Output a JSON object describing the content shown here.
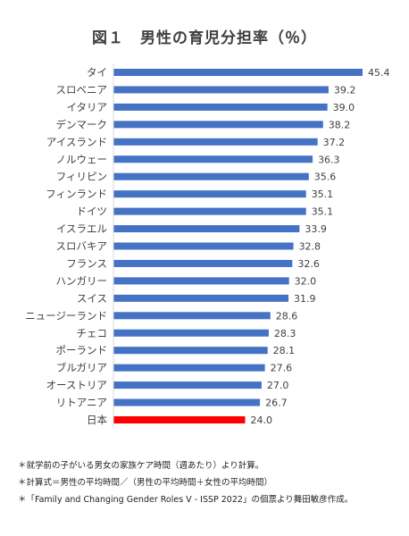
{
  "chart_data": {
    "type": "bar",
    "orientation": "horizontal",
    "title": "図１　男性の育児分担率（％）",
    "categories": [
      "タイ",
      "スロベニア",
      "イタリア",
      "デンマーク",
      "アイスランド",
      "ノルウェー",
      "フィリピン",
      "フィンランド",
      "ドイツ",
      "イスラエル",
      "スロバキア",
      "フランス",
      "ハンガリー",
      "スイス",
      "ニュージーランド",
      "チェコ",
      "ポーランド",
      "ブルガリア",
      "オーストリア",
      "リトアニア",
      "日本"
    ],
    "value_labels": [
      "45.4",
      "39.2",
      "39.0",
      "38.2",
      "37.2",
      "36.3",
      "35.6",
      "35.1",
      "35.1",
      "33.9",
      "32.8",
      "32.6",
      "32.0",
      "31.9",
      "28.6",
      "28.3",
      "28.1",
      "27.6",
      "27.0",
      "26.7",
      "24.0"
    ],
    "values": [
      45.4,
      39.2,
      39.0,
      38.2,
      37.2,
      36.3,
      35.6,
      35.1,
      35.1,
      33.9,
      32.8,
      32.6,
      32.0,
      31.9,
      28.6,
      28.3,
      28.1,
      27.6,
      27.0,
      26.7,
      24.0
    ],
    "colors": {
      "default": "#4472c4",
      "highlight": "#ff0000"
    },
    "highlight_category": "日本",
    "xlim": [
      0,
      45.4
    ],
    "grid": false,
    "legend": "none"
  },
  "notes": [
    "＊就学前の子がいる男女の家族ケア時間（週あたり）より計算。",
    "＊計算式＝男性の平均時間／（男性の平均時間＋女性の平均時間）",
    "＊「Family and Changing Gender Roles V - ISSP 2022」の個票より舞田敏彦作成。"
  ]
}
